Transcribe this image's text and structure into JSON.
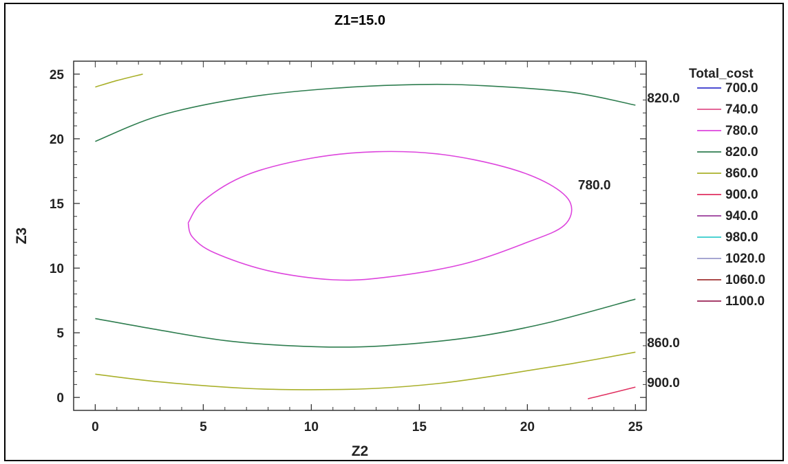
{
  "chart_data": {
    "type": "contour",
    "title": "Z1=15.0",
    "xlabel": "Z2",
    "ylabel": "Z3",
    "xlim": [
      -1,
      25.5
    ],
    "ylim": [
      -1,
      26
    ],
    "x_ticks": [
      "0",
      "5",
      "10",
      "15",
      "20",
      "25"
    ],
    "y_ticks": [
      "0",
      "5",
      "10",
      "15",
      "20",
      "25"
    ],
    "legend_title": "Total_cost",
    "legend": [
      {
        "label": "700.0",
        "color": "#3333cc"
      },
      {
        "label": "740.0",
        "color": "#e0508a"
      },
      {
        "label": "780.0",
        "color": "#dd44dd"
      },
      {
        "label": "820.0",
        "color": "#2e7d4f"
      },
      {
        "label": "860.0",
        "color": "#a9b02a"
      },
      {
        "label": "900.0",
        "color": "#e03060"
      },
      {
        "label": "940.0",
        "color": "#9a3a9a"
      },
      {
        "label": "980.0",
        "color": "#33cccc"
      },
      {
        "label": "1020.0",
        "color": "#9999cc"
      },
      {
        "label": "1060.0",
        "color": "#a03030"
      },
      {
        "label": "1100.0",
        "color": "#9a2255"
      }
    ],
    "contours": [
      {
        "level": "780.0",
        "color": "#dd44dd",
        "closed": true,
        "points": [
          [
            4.3,
            13.5
          ],
          [
            5,
            15.2
          ],
          [
            7,
            17.2
          ],
          [
            10,
            18.5
          ],
          [
            13,
            19
          ],
          [
            16,
            18.8
          ],
          [
            19,
            17.8
          ],
          [
            21,
            16.5
          ],
          [
            22,
            15
          ],
          [
            21.7,
            13.3
          ],
          [
            20,
            12
          ],
          [
            17,
            10.3
          ],
          [
            13.5,
            9.3
          ],
          [
            11,
            9.1
          ],
          [
            8,
            9.8
          ],
          [
            5.5,
            11.2
          ],
          [
            4.5,
            12.4
          ],
          [
            4.3,
            13.5
          ]
        ]
      },
      {
        "level": "820.0",
        "color": "#2e7d4f",
        "closed": false,
        "points": [
          [
            0,
            19.8
          ],
          [
            3,
            21.8
          ],
          [
            7,
            23.2
          ],
          [
            11,
            23.9
          ],
          [
            15,
            24.2
          ],
          [
            18,
            24.1
          ],
          [
            22,
            23.6
          ],
          [
            25,
            22.6
          ]
        ]
      },
      {
        "level": "820.0",
        "color": "#2e7d4f",
        "closed": false,
        "points": [
          [
            0,
            6.1
          ],
          [
            3,
            5.2
          ],
          [
            6,
            4.4
          ],
          [
            9,
            4
          ],
          [
            12,
            3.9
          ],
          [
            15,
            4.2
          ],
          [
            18,
            4.8
          ],
          [
            21,
            5.8
          ],
          [
            25,
            7.6
          ]
        ]
      },
      {
        "level": "860.0",
        "color": "#a9b02a",
        "closed": false,
        "points": [
          [
            0,
            24
          ],
          [
            1,
            24.5
          ],
          [
            2.2,
            25
          ]
        ]
      },
      {
        "level": "860.0",
        "color": "#a9b02a",
        "closed": false,
        "points": [
          [
            0,
            1.8
          ],
          [
            3,
            1.2
          ],
          [
            7,
            0.7
          ],
          [
            10,
            0.6
          ],
          [
            13,
            0.7
          ],
          [
            16,
            1.1
          ],
          [
            19,
            1.8
          ],
          [
            22,
            2.6
          ],
          [
            25,
            3.5
          ]
        ]
      },
      {
        "level": "900.0",
        "color": "#e03060",
        "closed": false,
        "points": [
          [
            22.8,
            -0.1
          ],
          [
            23.8,
            0.3
          ],
          [
            25,
            0.8
          ]
        ]
      }
    ],
    "contour_labels": [
      {
        "text": "820.0",
        "x": 26.3,
        "y": 22.8
      },
      {
        "text": "780.0",
        "x": 23.1,
        "y": 16.1
      },
      {
        "text": "860.0",
        "x": 26.3,
        "y": 3.9
      },
      {
        "text": "900.0",
        "x": 26.3,
        "y": 0.8
      }
    ]
  }
}
